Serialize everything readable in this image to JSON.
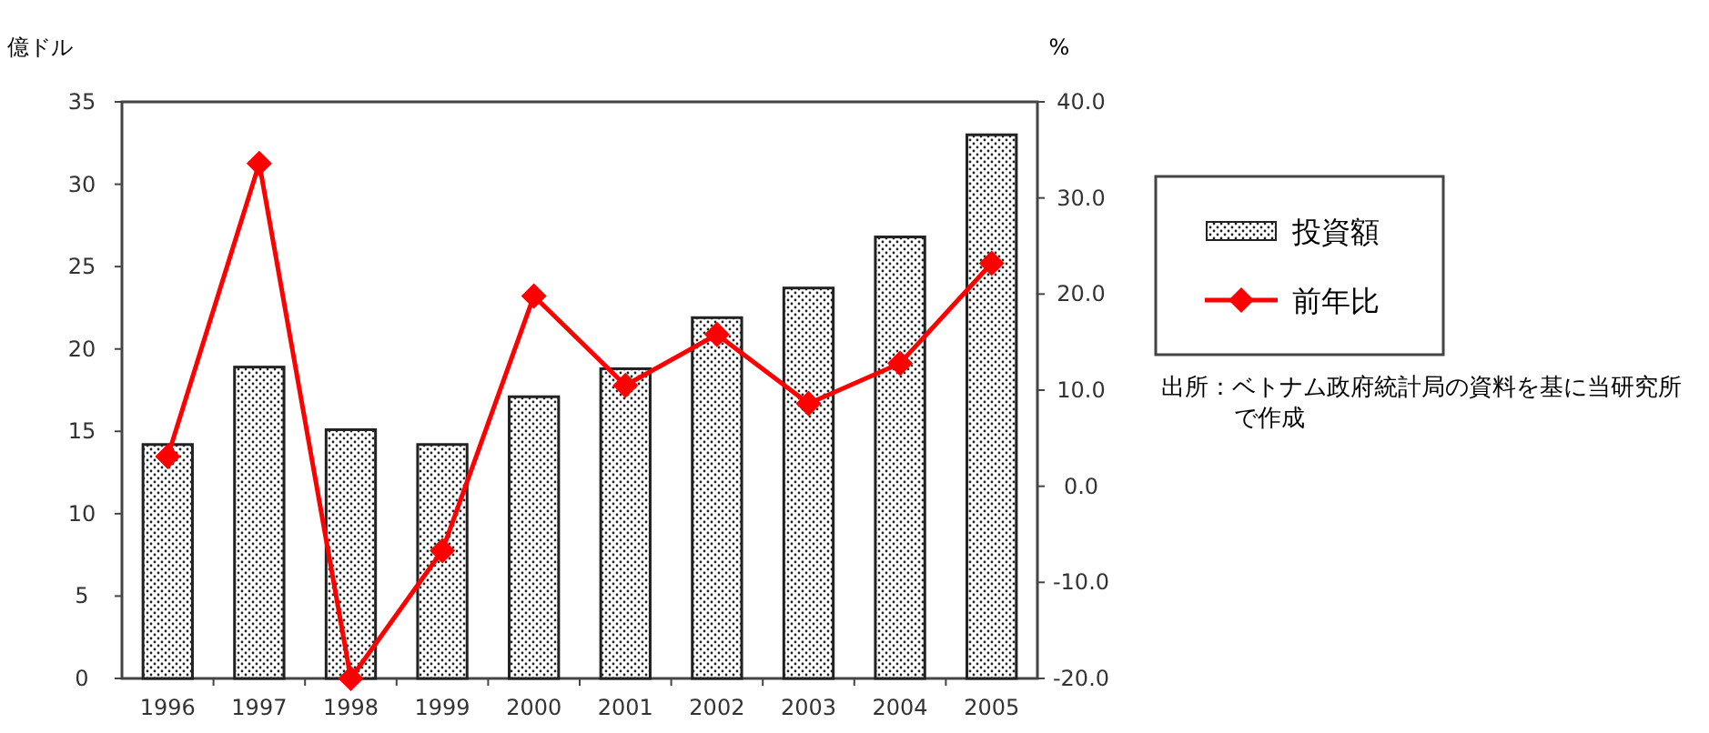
{
  "chart_data": {
    "type": "bar",
    "ylabel": "億ドル",
    "y2label": "%",
    "categories": [
      "1996",
      "1997",
      "1998",
      "1999",
      "2000",
      "2001",
      "2002",
      "2003",
      "2004",
      "2005"
    ],
    "series": [
      {
        "name": "投資額",
        "color": "#222222",
        "values": [
          14.2,
          18.9,
          15.1,
          14.2,
          17.1,
          18.8,
          21.9,
          23.7,
          26.8,
          33.0
        ]
      },
      {
        "name": "前年比",
        "type": "line",
        "axis": "y2",
        "color": "#ff0000",
        "marker": "diamond",
        "values": [
          3.1,
          33.6,
          -20.0,
          -6.7,
          19.8,
          10.5,
          15.8,
          8.6,
          12.8,
          23.2
        ]
      }
    ],
    "ylim": [
      0,
      35
    ],
    "yticks": [
      0,
      5,
      10,
      15,
      20,
      25,
      30,
      35
    ],
    "y2lim": [
      -20,
      40
    ],
    "y2ticks": [
      {
        "value": -20,
        "label": "-20.0"
      },
      {
        "value": -10,
        "label": "-10.0"
      },
      {
        "value": 0,
        "label": "0.0"
      },
      {
        "value": 10,
        "label": "10.0"
      },
      {
        "value": 20,
        "label": "20.0"
      },
      {
        "value": 30,
        "label": "30.0"
      },
      {
        "value": 40,
        "label": "40.0"
      }
    ],
    "grid": false,
    "legend": "right",
    "annotations": [
      "出所：ベトナム政府統計局の資料を基に当研究所で作成"
    ]
  }
}
